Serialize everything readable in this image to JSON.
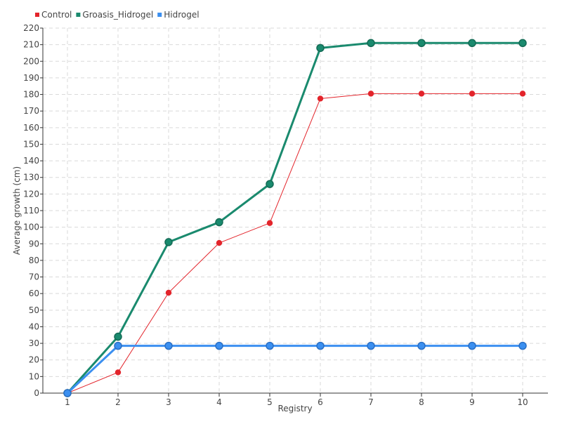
{
  "chart_data": {
    "type": "line",
    "title": "",
    "xlabel": "Registry",
    "ylabel": "Average growth (cm)",
    "x": [
      1,
      2,
      3,
      4,
      5,
      6,
      7,
      8,
      9,
      10
    ],
    "ylim": [
      0,
      220
    ],
    "ytick_step": 10,
    "grid": true,
    "legend_position": "top-left",
    "series": [
      {
        "name": "Control",
        "color": "#e3242b",
        "values": [
          0,
          12.5,
          60.5,
          90.5,
          102.5,
          177.5,
          180.5,
          180.5,
          180.5,
          180.5
        ]
      },
      {
        "name": "Groasis_Hidrogel",
        "color": "#1a8a6e",
        "values": [
          0,
          34,
          91,
          103,
          126,
          208,
          211,
          211,
          211,
          211
        ]
      },
      {
        "name": "Hidrogel",
        "color": "#3b8ff0",
        "values": [
          0,
          28.5,
          28.5,
          28.5,
          28.5,
          28.5,
          28.5,
          28.5,
          28.5,
          28.5
        ]
      }
    ]
  }
}
